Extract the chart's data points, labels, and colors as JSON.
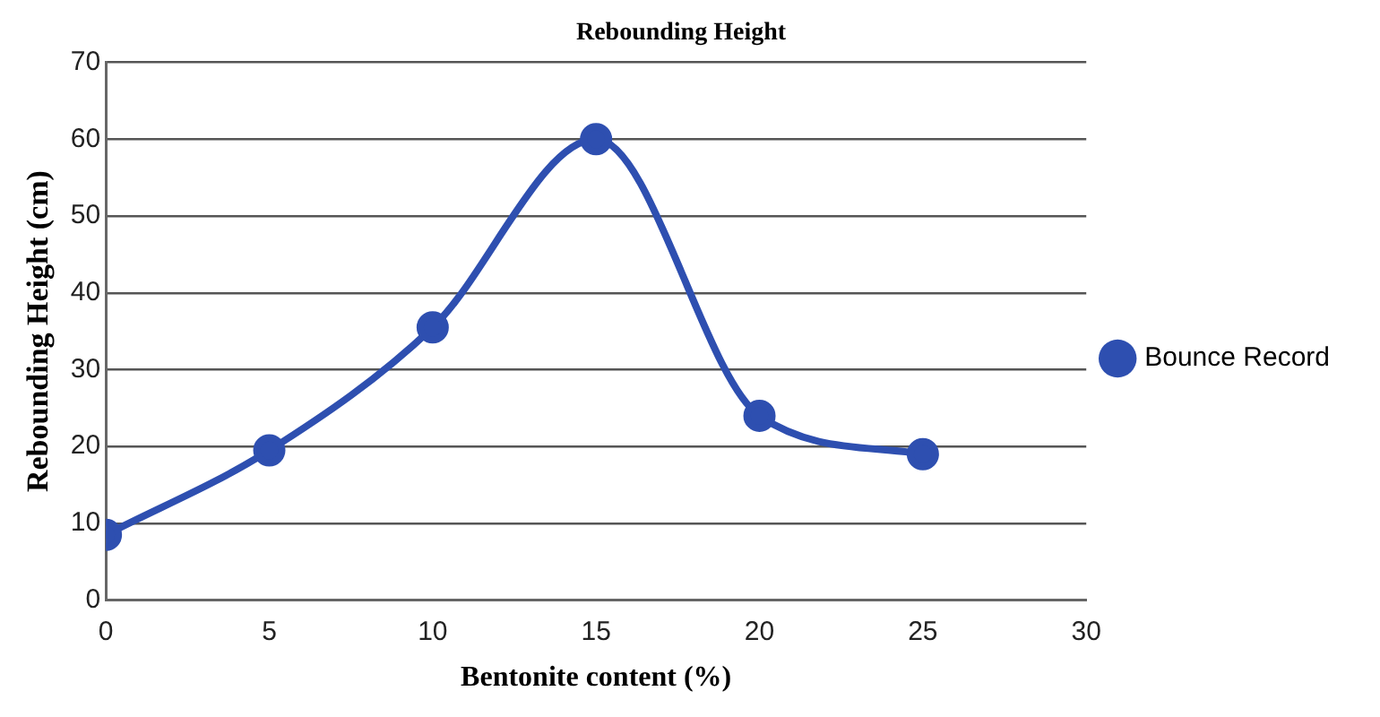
{
  "chart_data": {
    "type": "line",
    "title": "Rebounding Height",
    "xlabel": "Bentonite content (%)",
    "ylabel": "Rebounding Height (cm)",
    "x": [
      0,
      5,
      10,
      15,
      20,
      25
    ],
    "series": [
      {
        "name": "Bounce Record",
        "color": "#2e4fb0",
        "values": [
          8.5,
          19.5,
          35.5,
          60,
          24,
          19
        ]
      }
    ],
    "xlim": [
      0,
      30
    ],
    "xticks": [
      0,
      5,
      10,
      15,
      20,
      25,
      30
    ],
    "ylim": [
      0,
      70
    ],
    "yticks": [
      0,
      10,
      20,
      30,
      40,
      50,
      60,
      70
    ],
    "grid": "y",
    "legend": "right",
    "marker": "circle",
    "line_style": "solid"
  }
}
